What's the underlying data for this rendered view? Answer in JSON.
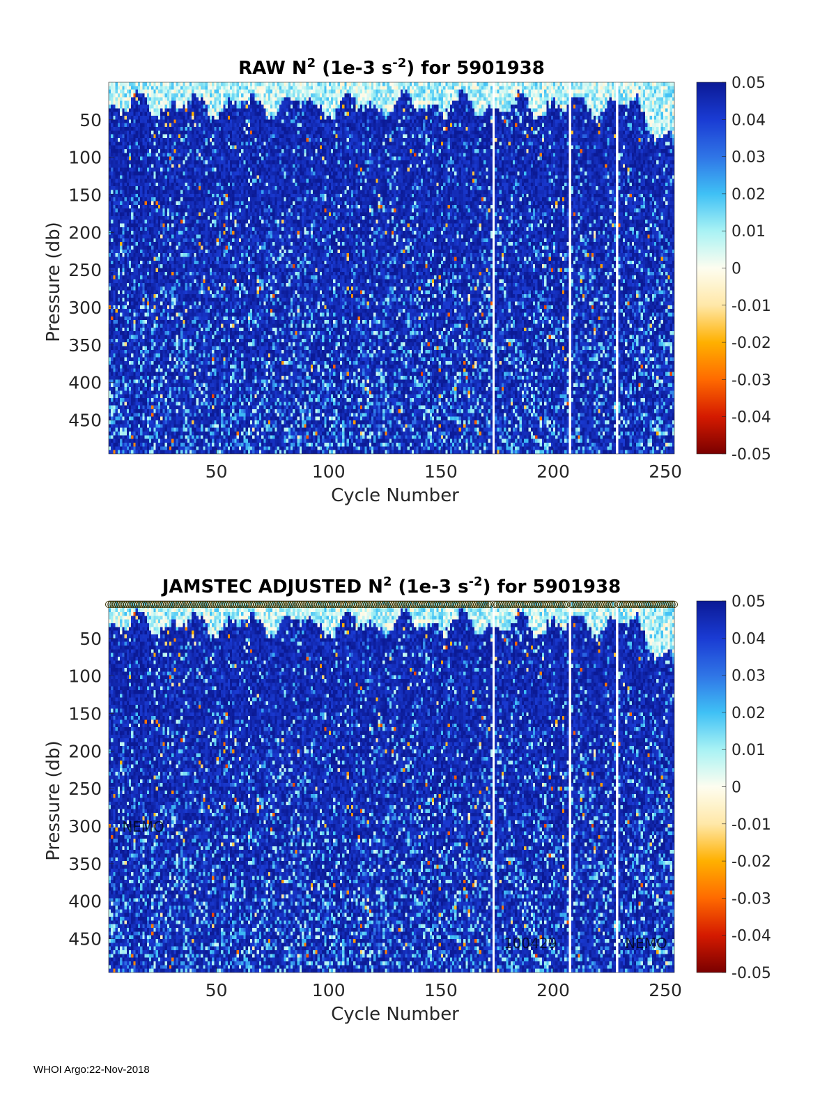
{
  "footer": "WHOI Argo:22-Nov-2018",
  "colormap": {
    "stops": [
      "#7a0000",
      "#d41a00",
      "#ff6a00",
      "#ffb000",
      "#ffe8a8",
      "#fdfdf0",
      "#a8f2f4",
      "#3fc0f5",
      "#2f74e6",
      "#1a3bd3",
      "#0b1a95"
    ],
    "background_blue": "#0d1b96"
  },
  "chart_data": [
    {
      "type": "heatmap",
      "title_parts": [
        "RAW N",
        "2",
        " (1e-3 s",
        "-2",
        ") for 5901938"
      ],
      "xlabel": "Cycle Number",
      "ylabel": "Pressure (db)",
      "xlim": [
        2,
        254
      ],
      "ylim": [
        0,
        495
      ],
      "y_reversed": true,
      "x_ticks": [
        "50",
        "100",
        "150",
        "200",
        "250"
      ],
      "x_tick_values": [
        50,
        100,
        150,
        200,
        250
      ],
      "y_ticks": [
        "50",
        "100",
        "150",
        "200",
        "250",
        "300",
        "350",
        "400",
        "450"
      ],
      "y_tick_values": [
        50,
        100,
        150,
        200,
        250,
        300,
        350,
        400,
        450
      ],
      "missing_cycles": [
        173,
        207,
        228
      ],
      "colorbar": {
        "ticks": [
          "0.05",
          "0.04",
          "0.03",
          "0.02",
          "0.01",
          "0",
          "-0.01",
          "-0.02",
          "-0.03",
          "-0.04",
          "-0.05"
        ],
        "tick_values": [
          0.05,
          0.04,
          0.03,
          0.02,
          0.01,
          0,
          -0.01,
          -0.02,
          -0.03,
          -0.04,
          -0.05
        ],
        "range": [
          -0.05,
          0.05
        ]
      },
      "annotations": [],
      "markers": {
        "show": false
      }
    },
    {
      "type": "heatmap",
      "title_parts": [
        "JAMSTEC  ADJUSTED N",
        "2",
        " (1e-3 s",
        "-2",
        ") for 5901938"
      ],
      "xlabel": "Cycle Number",
      "ylabel": "Pressure (db)",
      "xlim": [
        2,
        254
      ],
      "ylim": [
        0,
        495
      ],
      "y_reversed": true,
      "x_ticks": [
        "50",
        "100",
        "150",
        "200",
        "250"
      ],
      "x_tick_values": [
        50,
        100,
        150,
        200,
        250
      ],
      "y_ticks": [
        "50",
        "100",
        "150",
        "200",
        "250",
        "300",
        "350",
        "400",
        "450"
      ],
      "y_tick_values": [
        50,
        100,
        150,
        200,
        250,
        300,
        350,
        400,
        450
      ],
      "missing_cycles": [
        173,
        207,
        228
      ],
      "colorbar": {
        "ticks": [
          "0.05",
          "0.04",
          "0.03",
          "0.02",
          "0.01",
          "0",
          "-0.01",
          "-0.02",
          "-0.03",
          "-0.04",
          "-0.05"
        ],
        "tick_values": [
          0.05,
          0.04,
          0.03,
          0.02,
          0.01,
          0,
          -0.01,
          -0.02,
          -0.03,
          -0.04,
          -0.05
        ],
        "range": [
          -0.05,
          0.05
        ]
      },
      "annotations": [
        {
          "text": "NEMO",
          "x": 8,
          "y": 300
        },
        {
          "text": "100429",
          "x": 178,
          "y": 455
        },
        {
          "text": "NEMO",
          "x": 232,
          "y": 455
        }
      ],
      "markers": {
        "show": true,
        "y": 0
      }
    }
  ]
}
